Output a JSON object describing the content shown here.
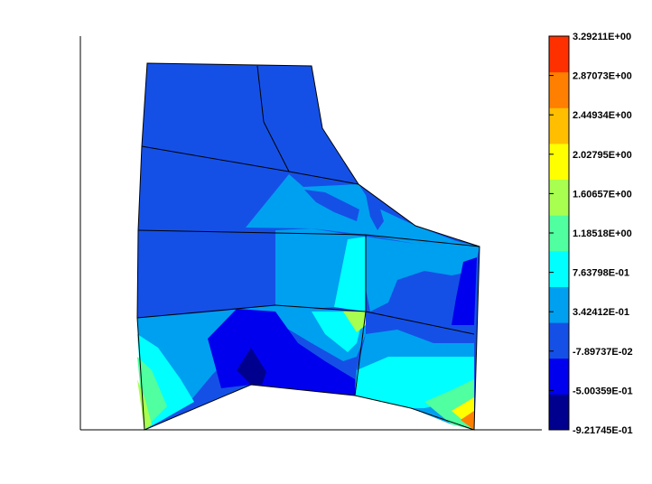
{
  "chart_data": {
    "type": "heatmap",
    "title": "",
    "xlabel": "",
    "ylabel": "",
    "description_of_marks": "filled contour plot over a quadrilateral finite-element mesh",
    "colorbar": {
      "levels": [
        "-9.21745E-01",
        "-5.00359E-01",
        "-7.89737E-02",
        "3.42412E-01",
        "7.63798E-01",
        "1.18518E+00",
        "1.60657E+00",
        "2.02795E+00",
        "2.44934E+00",
        "2.87073E+00",
        "3.29211E+00"
      ],
      "colors": [
        "#00008F",
        "#0000EF",
        "#1550E6",
        "#00A0F0",
        "#00FFFF",
        "#50FF9F",
        "#A8FF50",
        "#FFFF00",
        "#FFBF00",
        "#FF7F00",
        "#FF3000"
      ]
    }
  }
}
